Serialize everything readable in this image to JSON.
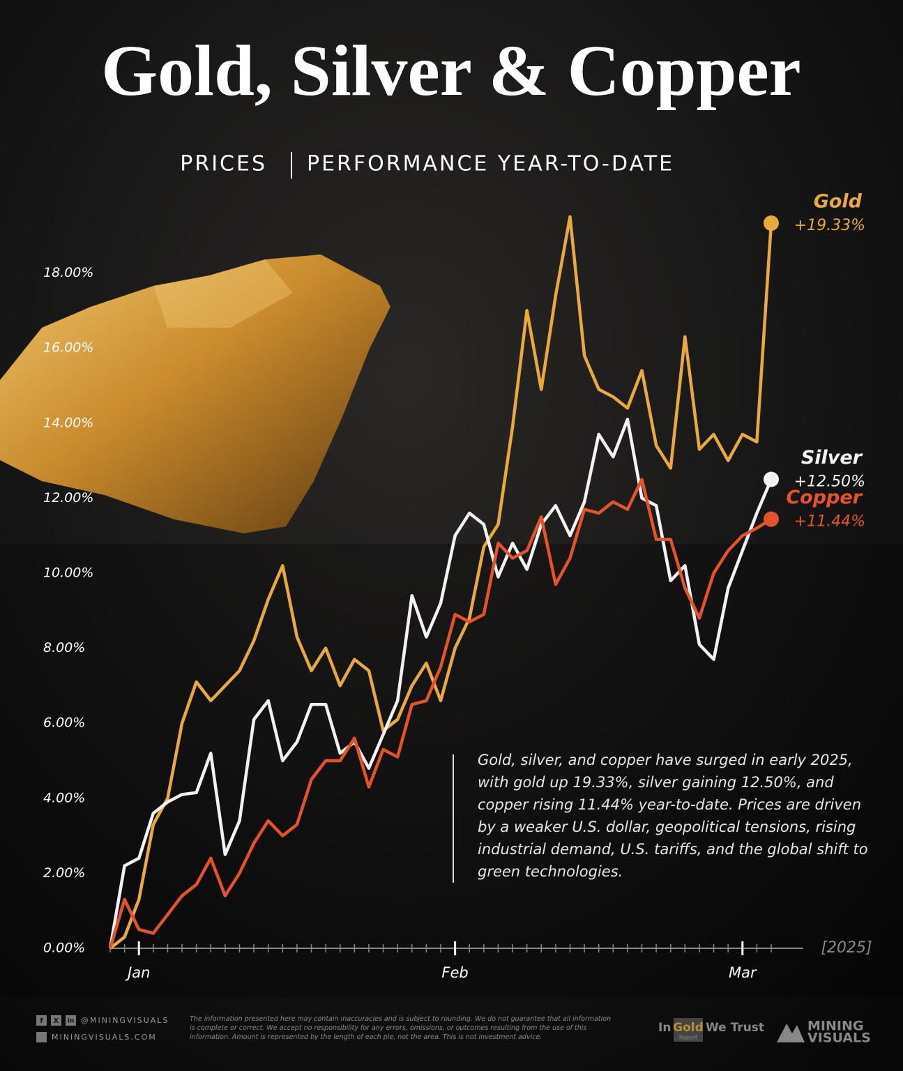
{
  "chart_data": {
    "type": "line",
    "title": "Gold, Silver & Copper",
    "subtitle": [
      "PRICES",
      "PERFORMANCE YEAR-TO-DATE"
    ],
    "categories": [
      null,
      null,
      "Jan",
      null,
      null,
      null,
      null,
      null,
      null,
      null,
      null,
      null,
      null,
      null,
      null,
      null,
      null,
      null,
      null,
      null,
      null,
      null,
      null,
      null,
      "Feb",
      null,
      null,
      null,
      null,
      null,
      null,
      null,
      null,
      null,
      null,
      null,
      null,
      null,
      null,
      null,
      null,
      null,
      null,
      null,
      "Mar",
      null,
      null
    ],
    "x_axis_note": "[2025]",
    "ylim": [
      0,
      20
    ],
    "yticks": [
      {
        "value": 0,
        "label": "0.00%"
      },
      {
        "value": 2,
        "label": "2.00%"
      },
      {
        "value": 4,
        "label": "4.00%"
      },
      {
        "value": 6,
        "label": "6.00%"
      },
      {
        "value": 8,
        "label": "8.00%"
      },
      {
        "value": 10,
        "label": "10.00%"
      },
      {
        "value": 12,
        "label": "12.00%"
      },
      {
        "value": 14,
        "label": "14.00%"
      },
      {
        "value": 16,
        "label": "16.00%"
      },
      {
        "value": 18,
        "label": "18.00%"
      }
    ],
    "grid": false,
    "series": [
      {
        "name": "Gold",
        "color": "#e9aa3c",
        "values": [
          0,
          0.3,
          1.3,
          3.3,
          4.0,
          6.0,
          7.1,
          6.6,
          7.0,
          7.4,
          8.2,
          9.3,
          10.2,
          8.3,
          7.4,
          8.0,
          7.0,
          7.7,
          7.4,
          5.8,
          6.1,
          7.0,
          7.6,
          6.6,
          8.0,
          8.8,
          10.7,
          11.3,
          13.9,
          17.0,
          14.9,
          17.4,
          19.5,
          15.8,
          14.9,
          14.7,
          14.4,
          15.4,
          13.4,
          12.8,
          16.3,
          13.3,
          13.7,
          13.0,
          13.7,
          13.5,
          19.33
        ],
        "value_labels": [
          null,
          null,
          null,
          null,
          null,
          null,
          null,
          null,
          null,
          null,
          null,
          null,
          null,
          null,
          null,
          null,
          null,
          null,
          null,
          null,
          null,
          null,
          null,
          null,
          null,
          null,
          null,
          null,
          null,
          null,
          null,
          null,
          null,
          null,
          null,
          null,
          null,
          null,
          null,
          null,
          null,
          null,
          null,
          null,
          null,
          null,
          "+19.33%"
        ]
      },
      {
        "name": "Silver",
        "color": "#f2f2f2",
        "values": [
          0,
          2.2,
          2.4,
          3.6,
          3.9,
          4.1,
          4.15,
          5.2,
          2.5,
          3.4,
          6.1,
          6.6,
          5.0,
          5.5,
          6.5,
          6.5,
          5.2,
          5.5,
          4.8,
          5.7,
          6.6,
          9.4,
          8.3,
          9.2,
          11.0,
          11.6,
          11.3,
          9.9,
          10.8,
          10.1,
          11.3,
          11.8,
          11.0,
          11.9,
          13.7,
          13.1,
          14.1,
          12.0,
          11.8,
          9.8,
          10.2,
          8.1,
          7.7,
          9.6,
          10.6,
          11.6,
          12.5
        ],
        "value_labels": [
          null,
          null,
          null,
          null,
          null,
          null,
          null,
          null,
          null,
          null,
          null,
          null,
          null,
          null,
          null,
          null,
          null,
          null,
          null,
          null,
          null,
          null,
          null,
          null,
          null,
          null,
          null,
          null,
          null,
          null,
          null,
          null,
          null,
          null,
          null,
          null,
          null,
          null,
          null,
          null,
          null,
          null,
          null,
          null,
          null,
          null,
          "+12.50%"
        ]
      },
      {
        "name": "Copper",
        "color": "#e5532a",
        "values": [
          0,
          1.3,
          0.5,
          0.4,
          0.9,
          1.4,
          1.7,
          2.4,
          1.4,
          2.0,
          2.8,
          3.4,
          3.0,
          3.3,
          4.5,
          5.0,
          5.0,
          5.6,
          4.3,
          5.3,
          5.1,
          6.5,
          6.6,
          7.5,
          8.9,
          8.7,
          8.9,
          10.8,
          10.4,
          10.6,
          11.5,
          9.7,
          10.4,
          11.7,
          11.6,
          11.9,
          11.7,
          12.5,
          10.9,
          10.9,
          9.6,
          8.8,
          10.0,
          10.6,
          11.0,
          11.2,
          11.44
        ],
        "value_labels": [
          null,
          null,
          null,
          null,
          null,
          null,
          null,
          null,
          null,
          null,
          null,
          null,
          null,
          null,
          null,
          null,
          null,
          null,
          null,
          null,
          null,
          null,
          null,
          null,
          null,
          null,
          null,
          null,
          null,
          null,
          null,
          null,
          null,
          null,
          null,
          null,
          null,
          null,
          null,
          null,
          null,
          null,
          null,
          null,
          null,
          null,
          "+11.44%"
        ]
      }
    ],
    "annotation": "Gold, silver, and copper have surged in early 2025, with gold up 19.33%, silver gaining 12.50%, and copper rising 11.44% year-to-date. Prices are driven by a weaker U.S. dollar, geopolitical tensions, rising industrial demand, U.S. tariffs, and the global shift to green technologies.",
    "footer": {
      "social_icons": [
        "f",
        "X",
        "in"
      ],
      "handle": "@MININGVISUALS",
      "website": "MININGVISUALS.COM",
      "disclaimer": "The information presented here may contain inaccuracies and is subject to rounding. We do not guarantee that all information is complete or correct. We accept no responsibility for any errors, omissions, or outcomes resulting from the use of this information. Amount is represented by the length of each pie, not the area. This is not investment advice.",
      "partner": [
        "In",
        "Gold",
        "We Trust",
        "Report"
      ],
      "brand": [
        "MINING",
        "VISUALS"
      ]
    }
  }
}
